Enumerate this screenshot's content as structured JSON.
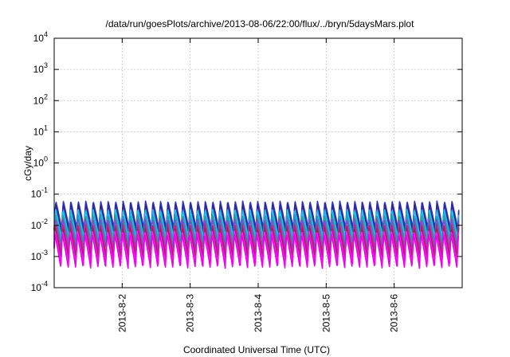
{
  "chart_data": {
    "type": "line",
    "title": "/data/run/goesPlots/archive/2013-08-06/22:00/flux/../bryn/5daysMars.plot",
    "xlabel": "Coordinated Universal Time (UTC)",
    "ylabel": "cGy/day",
    "yscale": "log",
    "ylim": [
      0.0001,
      10000
    ],
    "xlim": [
      "2013-08-01 00:00",
      "2013-08-07 00:00"
    ],
    "y_ticks": [
      {
        "value": 0.0001,
        "base": "10",
        "exp": "-4"
      },
      {
        "value": 0.001,
        "base": "10",
        "exp": "-3"
      },
      {
        "value": 0.01,
        "base": "10",
        "exp": "-2"
      },
      {
        "value": 0.1,
        "base": "10",
        "exp": "-1"
      },
      {
        "value": 1,
        "base": "10",
        "exp": "0"
      },
      {
        "value": 10,
        "base": "10",
        "exp": "1"
      },
      {
        "value": 100,
        "base": "10",
        "exp": "2"
      },
      {
        "value": 1000,
        "base": "10",
        "exp": "3"
      },
      {
        "value": 10000,
        "base": "10",
        "exp": "4"
      }
    ],
    "x_ticks": [
      {
        "value": 1.0,
        "label": "2013-8-2"
      },
      {
        "value": 2.0,
        "label": "2013-8-3"
      },
      {
        "value": 3.0,
        "label": "2013-8-4"
      },
      {
        "value": 4.0,
        "label": "2013-8-5"
      },
      {
        "value": 5.0,
        "label": "2013-8-6"
      }
    ],
    "grid": true,
    "legend": "none",
    "oscillation": {
      "cycles_per_day": 9.1,
      "start_day": 0.0,
      "end_day": 5.95
    },
    "series": [
      {
        "color": "#3030d0",
        "peak": 0.06,
        "trough": 0.0075
      },
      {
        "color": "#2a2a9a",
        "peak": 0.048,
        "trough": 0.0055
      },
      {
        "color": "#18c0e8",
        "peak": 0.032,
        "trough": 0.0038
      },
      {
        "color": "#20a0b0",
        "peak": 0.022,
        "trough": 0.0026
      },
      {
        "color": "#8050c0",
        "peak": 0.016,
        "trough": 0.0017
      },
      {
        "color": "#c02080",
        "peak": 0.011,
        "trough": 0.0011
      },
      {
        "color": "#a02060",
        "peak": 0.0085,
        "trough": 0.0008
      },
      {
        "color": "#ff20ff",
        "peak": 0.0065,
        "trough": 0.00055
      },
      {
        "color": "#ee00ee",
        "peak": 0.0052,
        "trough": 0.00042
      }
    ]
  }
}
